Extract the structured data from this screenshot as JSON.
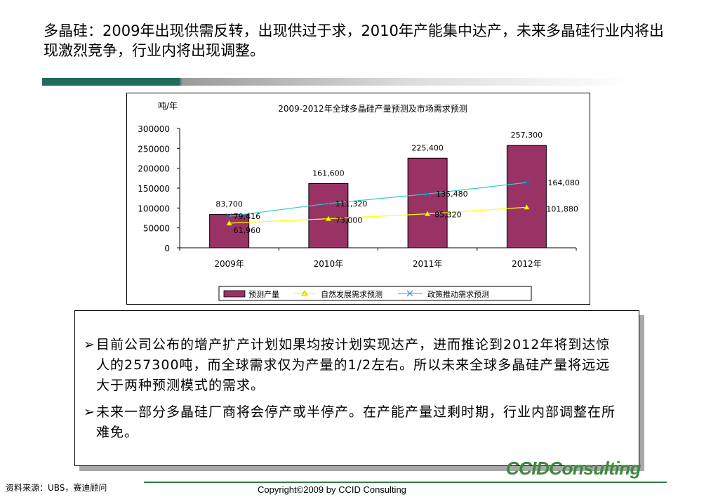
{
  "headline": "多晶硅：2009年出现供需反转，出现供过于求，2010年产能集中达产，未来多晶硅行业内将出现激烈竞争，行业内将出现调整。",
  "chart_data": {
    "type": "bar",
    "title": "2009-2012年全球多晶硅产量预测及市场需求预测",
    "ylabel": "吨/年",
    "ylim": [
      0,
      300000
    ],
    "yticks": [
      "300000",
      "250000",
      "200000",
      "150000",
      "100000",
      "50000",
      "0"
    ],
    "ytick_values": [
      300000,
      250000,
      200000,
      150000,
      100000,
      50000,
      0
    ],
    "categories": [
      "2009年",
      "2010年",
      "2011年",
      "2012年"
    ],
    "legend_position": "bottom",
    "series": [
      {
        "name": "预测产量",
        "kind": "bar",
        "color": "#993366",
        "values": [
          83700,
          161600,
          225400,
          257300
        ],
        "labels": [
          "83,700",
          "161,600",
          "225,400",
          "257,300"
        ]
      },
      {
        "name": "自然发展需求预测",
        "kind": "line",
        "marker": "triangle",
        "color": "#ffff00",
        "values": [
          61960,
          73000,
          85320,
          101880
        ],
        "labels": [
          "61,960",
          "73,000",
          "85,320",
          "101,880"
        ]
      },
      {
        "name": "政策推动需求预测",
        "kind": "line",
        "marker": "x",
        "color": "#33cccc",
        "values": [
          79416,
          111320,
          135480,
          164080
        ],
        "labels": [
          "79,416",
          "111,320",
          "135,480",
          "164,080"
        ]
      }
    ]
  },
  "bullets": [
    "目前公司公布的增产扩产计划如果均按计划实现达产，进而推论到2012年将到达惊人的257300吨，而全球需求仅为产量的1/2左右。所以未来全球多晶硅产量将远远大于两种预测模式的需求。",
    "未来一部分多晶硅厂商将会停产或半停产。在产能产量过剩时期，行业内部调整在所难免。"
  ],
  "bullet_marker": "➢",
  "brand": "CCIDConsulting",
  "source": "资料来源：UBS，赛迪顾问",
  "copyright": "Copyright©2009 by CCID Consulting"
}
